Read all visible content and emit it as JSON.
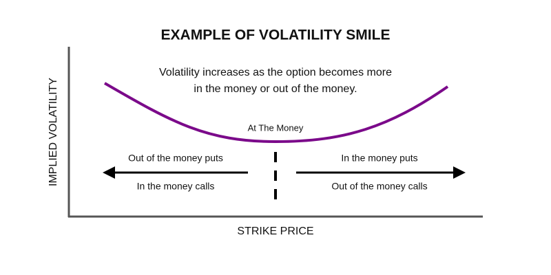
{
  "title": "EXAMPLE OF VOLATILITY SMILE",
  "y_axis_label": "IMPLIED VOLATILITY",
  "x_axis_label": "STRIKE PRICE",
  "annotation": {
    "lines": [
      "Volatility increases as the option becomes more",
      "in the money or out of the money."
    ]
  },
  "center_label": "At The Money",
  "left_side": {
    "above": "Out of the money puts",
    "below": "In the money calls"
  },
  "right_side": {
    "above": "In the money puts",
    "below": "Out of the money calls"
  }
}
